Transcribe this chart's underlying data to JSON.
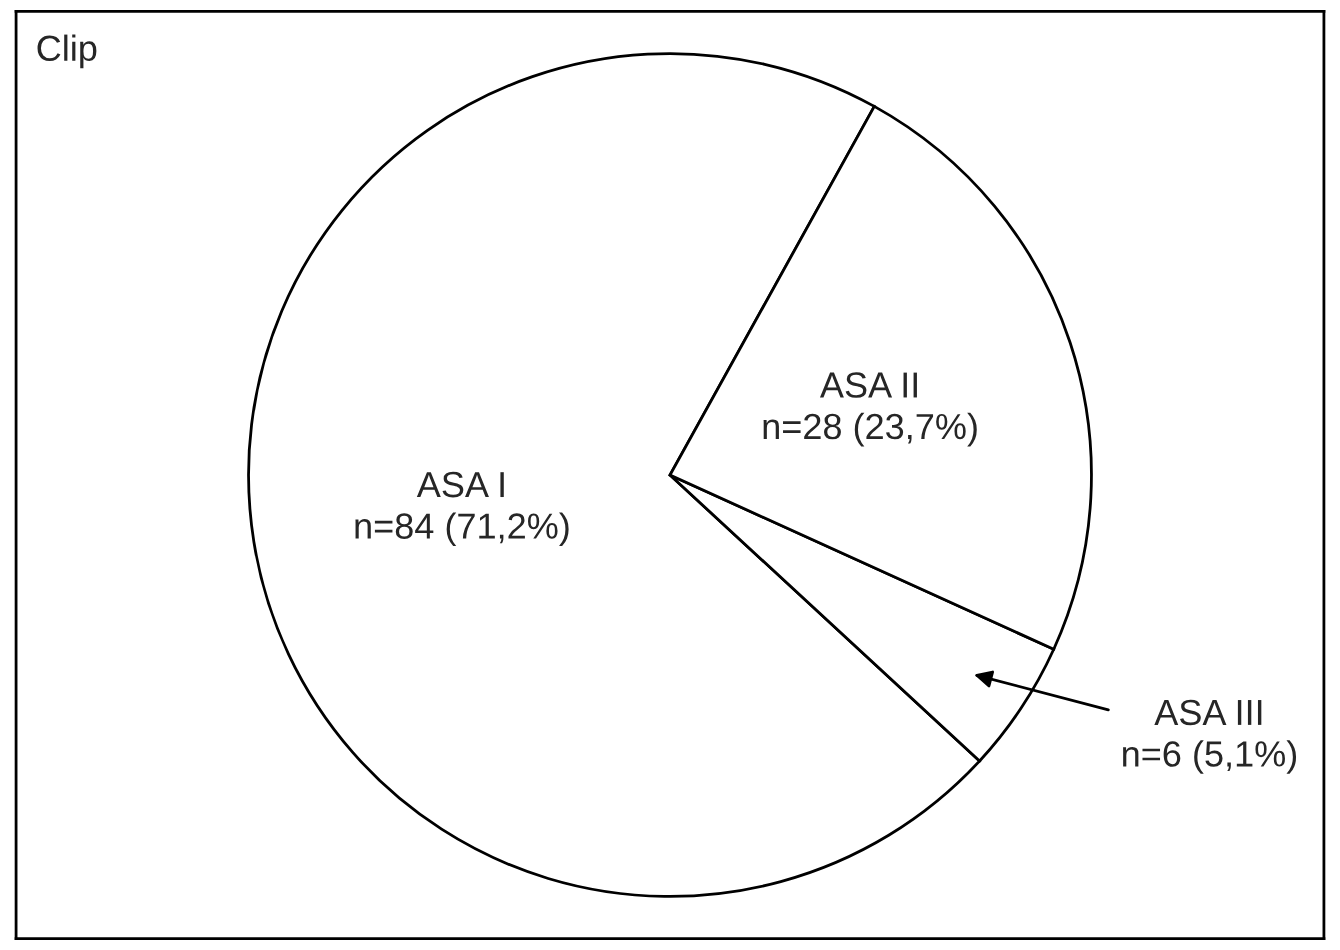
{
  "chart_data": {
    "type": "pie",
    "title": "Clip",
    "categories": [
      "ASA I",
      "ASA III",
      "ASA II"
    ],
    "values": [
      84,
      6,
      28
    ],
    "value_labels": [
      "n=84 (71,2%)",
      "n=6 (5,1%)",
      "n=28 (23,7%)"
    ],
    "colors": [
      "#ffffff",
      "#ffffff",
      "#ffffff"
    ],
    "legend": false
  }
}
